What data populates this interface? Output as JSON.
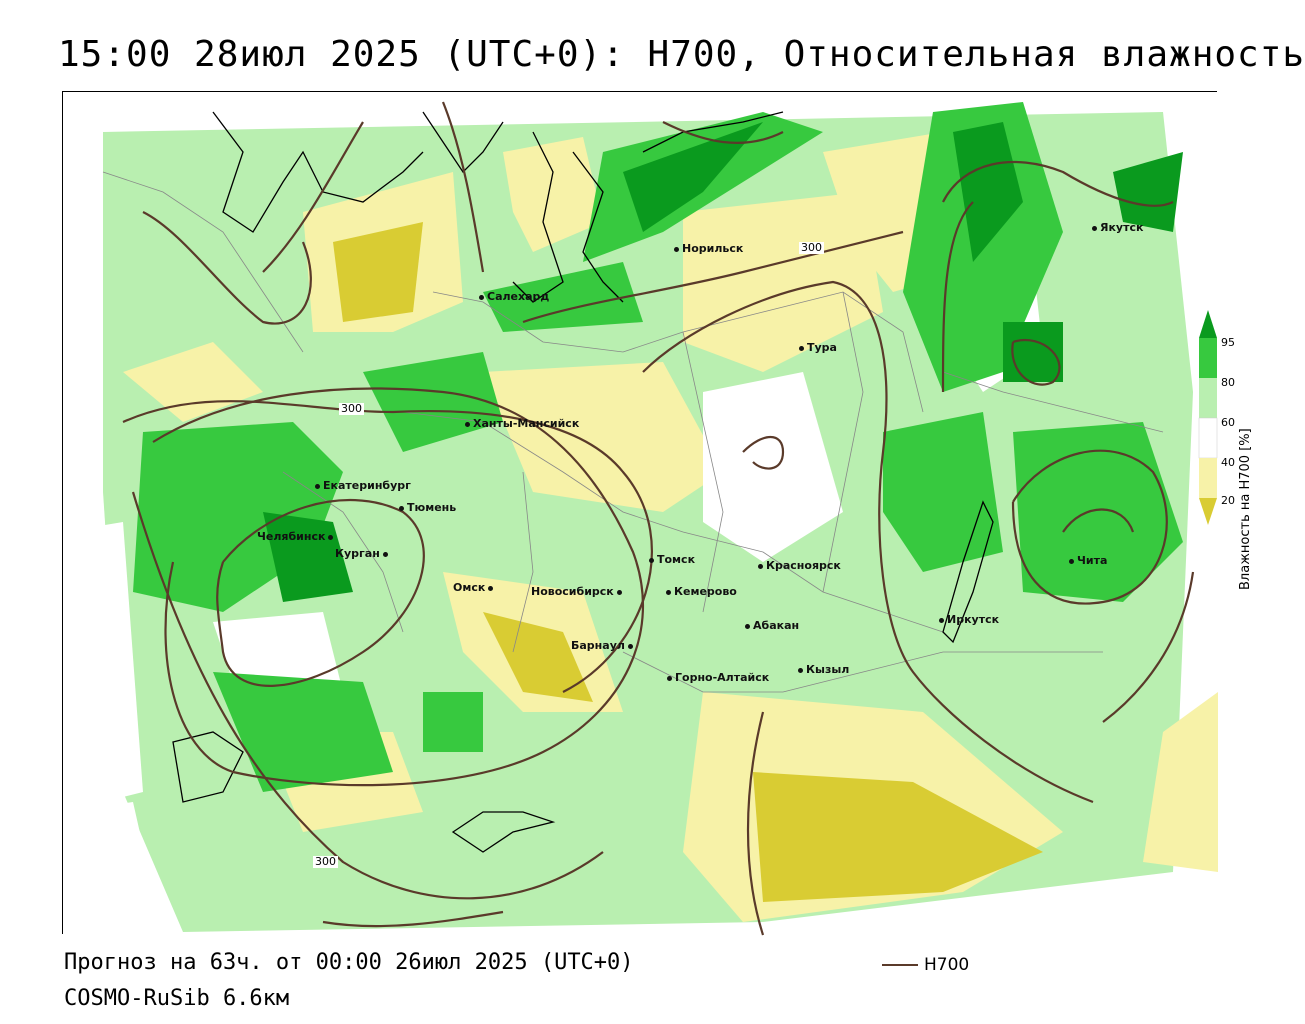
{
  "title": "15:00 28июл 2025 (UTC+0): H700, Относительная влажность",
  "colors": {
    "h700_contour": "#5a3a2a",
    "humidity_20": "#d9cc33",
    "humidity_40": "#f7f2a8",
    "humidity_60": "#ffffff",
    "humidity_80": "#b9efb0",
    "humidity_95": "#37c93f",
    "humidity_max": "#0a9a1e",
    "borders": "#888888",
    "coast": "#000000"
  },
  "cities": [
    {
      "name": "Норильск"
    },
    {
      "name": "Якутск"
    },
    {
      "name": "Салехард"
    },
    {
      "name": "Тура"
    },
    {
      "name": "Ханты-Мансийск"
    },
    {
      "name": "Екатеринбург"
    },
    {
      "name": "Тюмень"
    },
    {
      "name": "Челябинск"
    },
    {
      "name": "Курган"
    },
    {
      "name": "Омск"
    },
    {
      "name": "Новосибирск"
    },
    {
      "name": "Томск"
    },
    {
      "name": "Кемерово"
    },
    {
      "name": "Красноярск"
    },
    {
      "name": "Абакан"
    },
    {
      "name": "Барнаул"
    },
    {
      "name": "Горно-Алтайск"
    },
    {
      "name": "Кызыл"
    },
    {
      "name": "Иркутск"
    },
    {
      "name": "Чита"
    }
  ],
  "contour_labels": [
    "300",
    "300",
    "300"
  ],
  "legend": {
    "ticks": [
      "95",
      "80",
      "60",
      "40",
      "20"
    ],
    "title": "Влажность на H700 [%]"
  },
  "footer": {
    "forecast": "Прогноз на 63ч. от 00:00 26июл 2025 (UTC+0)",
    "model": "COSMO-RuSib 6.6км",
    "line_legend": "H700"
  }
}
